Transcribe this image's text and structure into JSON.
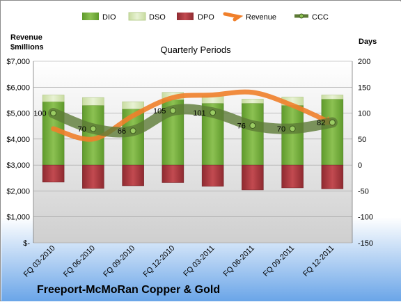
{
  "chart_data": {
    "type": "bar",
    "subtitle": "Quarterly Periods",
    "company": "Freeport-McMoRan Copper & Gold",
    "left_axis": {
      "title_line1": "Revenue",
      "title_line2": "$millions",
      "ylim": [
        0,
        7000
      ],
      "ticks": [
        "$-",
        "$1,000",
        "$2,000",
        "$3,000",
        "$4,000",
        "$5,000",
        "$6,000",
        "$7,000"
      ]
    },
    "right_axis": {
      "title": "Days",
      "ylim": [
        -150,
        200
      ],
      "ticks": [
        "-150",
        "-100",
        "-50",
        "0",
        "50",
        "100",
        "150",
        "200"
      ]
    },
    "categories": [
      "FQ 03-2010",
      "FQ 06-2010",
      "FQ 09-2010",
      "FQ 12-2010",
      "FQ 03-2011",
      "FQ 06-2011",
      "FQ 09-2011",
      "FQ 12-2011"
    ],
    "legend": [
      "DIO",
      "DSO",
      "DPO",
      "Revenue",
      "CCC"
    ],
    "series": [
      {
        "name": "DIO",
        "axis": "days",
        "color": "#7ab13c",
        "values": [
          122,
          115,
          108,
          126,
          119,
          119,
          115,
          127
        ]
      },
      {
        "name": "DSO",
        "axis": "days",
        "color": "#d6e6b8",
        "values": [
          13,
          15,
          14,
          14,
          14,
          8,
          16,
          8
        ]
      },
      {
        "name": "DPO",
        "axis": "days",
        "color": "#b0343b",
        "values": [
          -33,
          -45,
          -40,
          -34,
          -41,
          -48,
          -44,
          -46
        ]
      },
      {
        "name": "Revenue",
        "axis": "revenue",
        "color": "#f07f2a",
        "values": [
          4400,
          4000,
          4900,
          5600,
          5700,
          5800,
          5300,
          4600
        ]
      },
      {
        "name": "CCC",
        "axis": "days",
        "color": "#5d7a36",
        "values": [
          100,
          70,
          66,
          105,
          101,
          76,
          70,
          82
        ]
      }
    ]
  }
}
